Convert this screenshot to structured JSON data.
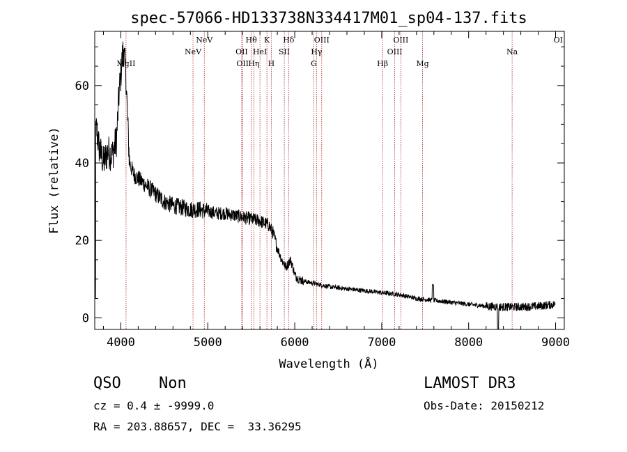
{
  "chart_data": {
    "type": "line",
    "title": "spec-57066-HD133738N334417M01_sp04-137.fits",
    "xlabel": "Wavelength (Å)",
    "ylabel": "Flux (relative)",
    "xlim": [
      3700,
      9100
    ],
    "ylim": [
      -3,
      74
    ],
    "x_ticks": [
      4000,
      5000,
      6000,
      7000,
      8000,
      9000
    ],
    "y_ticks": [
      0,
      20,
      40,
      60
    ],
    "spectrum_anchors": [
      [
        3700,
        45
      ],
      [
        3720,
        49
      ],
      [
        3750,
        44
      ],
      [
        3800,
        40
      ],
      [
        3850,
        43
      ],
      [
        3900,
        42
      ],
      [
        3950,
        46
      ],
      [
        3980,
        58
      ],
      [
        4000,
        63
      ],
      [
        4030,
        70
      ],
      [
        4060,
        62
      ],
      [
        4080,
        50
      ],
      [
        4100,
        40
      ],
      [
        4150,
        37
      ],
      [
        4200,
        36
      ],
      [
        4300,
        34
      ],
      [
        4400,
        32
      ],
      [
        4500,
        30
      ],
      [
        4600,
        29
      ],
      [
        4700,
        28.5
      ],
      [
        4800,
        28
      ],
      [
        4900,
        28
      ],
      [
        5000,
        27.5
      ],
      [
        5100,
        27
      ],
      [
        5200,
        27
      ],
      [
        5300,
        26.5
      ],
      [
        5400,
        26
      ],
      [
        5500,
        25.5
      ],
      [
        5600,
        25
      ],
      [
        5700,
        24
      ],
      [
        5750,
        22
      ],
      [
        5800,
        18
      ],
      [
        5850,
        15
      ],
      [
        5900,
        13
      ],
      [
        5950,
        15
      ],
      [
        5980,
        13
      ],
      [
        6000,
        11
      ],
      [
        6050,
        10
      ],
      [
        6100,
        9.5
      ],
      [
        6200,
        9
      ],
      [
        6300,
        8.5
      ],
      [
        6400,
        8
      ],
      [
        6600,
        7.5
      ],
      [
        6800,
        7
      ],
      [
        7000,
        6.5
      ],
      [
        7200,
        6
      ],
      [
        7400,
        5
      ],
      [
        7600,
        4.5
      ],
      [
        7800,
        4
      ],
      [
        8000,
        3.5
      ],
      [
        8200,
        3
      ],
      [
        8400,
        2.8
      ],
      [
        8600,
        2.8
      ],
      [
        8800,
        3
      ],
      [
        9000,
        3.5
      ]
    ],
    "lines": [
      {
        "label": "MgII",
        "wave": 4060,
        "row": 3
      },
      {
        "label": "NeV",
        "wave": 4830,
        "row": 2
      },
      {
        "label": "NeV",
        "wave": 4960,
        "row": 1
      },
      {
        "label": "OII",
        "wave": 5390,
        "row": 2
      },
      {
        "label": "OII",
        "wave": 5400,
        "row": 3
      },
      {
        "label": "Hθ",
        "wave": 5500,
        "row": 1
      },
      {
        "label": "Hη",
        "wave": 5530,
        "row": 3
      },
      {
        "label": "HeI",
        "wave": 5600,
        "row": 2
      },
      {
        "label": "K",
        "wave": 5680,
        "row": 1
      },
      {
        "label": "H",
        "wave": 5730,
        "row": 3
      },
      {
        "label": "SII",
        "wave": 5880,
        "row": 2
      },
      {
        "label": "Hδ",
        "wave": 5930,
        "row": 1
      },
      {
        "label": "G",
        "wave": 6220,
        "row": 3
      },
      {
        "label": "Hγ",
        "wave": 6250,
        "row": 2
      },
      {
        "label": "OIII",
        "wave": 6310,
        "row": 1
      },
      {
        "label": "Hβ",
        "wave": 7010,
        "row": 3
      },
      {
        "label": "OIII",
        "wave": 7150,
        "row": 2
      },
      {
        "label": "OIII",
        "wave": 7220,
        "row": 1
      },
      {
        "label": "Mg",
        "wave": 7470,
        "row": 3
      },
      {
        "label": "Na",
        "wave": 8500,
        "row": 2
      },
      {
        "label": "OI",
        "wave": 9100,
        "row": 1
      }
    ]
  },
  "info": {
    "class": "QSO",
    "subclass": "Non",
    "survey": "LAMOST DR3",
    "cz": "cz = 0.4 ± -9999.0",
    "obs_date": "Obs-Date: 20150212",
    "coords": "RA = 203.88657, DEC =  33.36295"
  },
  "colors": {
    "axis": "#000000",
    "spectrum": "#000000",
    "line_marker": "#b22222"
  }
}
